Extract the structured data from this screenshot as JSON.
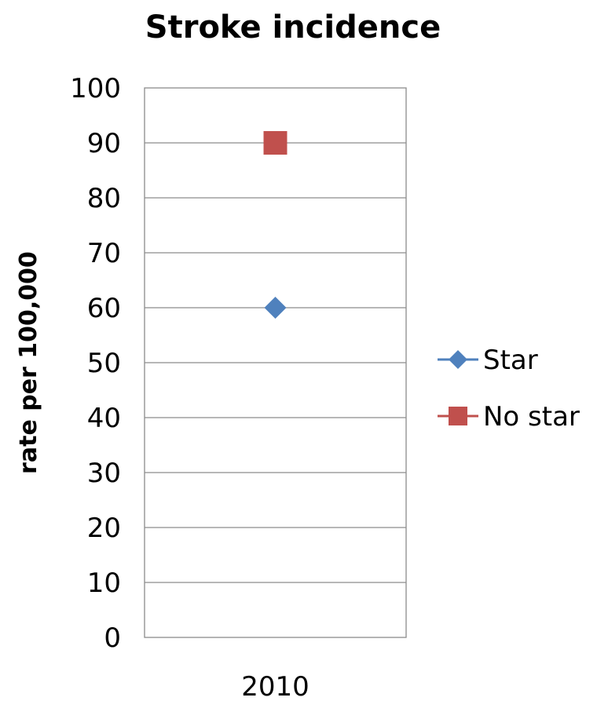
{
  "chart_data": {
    "type": "scatter",
    "title": "Stroke incidence",
    "xlabel": "",
    "ylabel": "rate per 100,000",
    "categories": [
      "2010"
    ],
    "ylim": [
      0,
      100
    ],
    "yticks": [
      "0",
      "10",
      "20",
      "30",
      "40",
      "50",
      "60",
      "70",
      "80",
      "90",
      "100"
    ],
    "grid": true,
    "legend_position": "right",
    "series": [
      {
        "name": "Star",
        "values": [
          60
        ],
        "color": "#4f81bd",
        "marker": "diamond"
      },
      {
        "name": "No star",
        "values": [
          90
        ],
        "color": "#c0504d",
        "marker": "square"
      }
    ]
  }
}
